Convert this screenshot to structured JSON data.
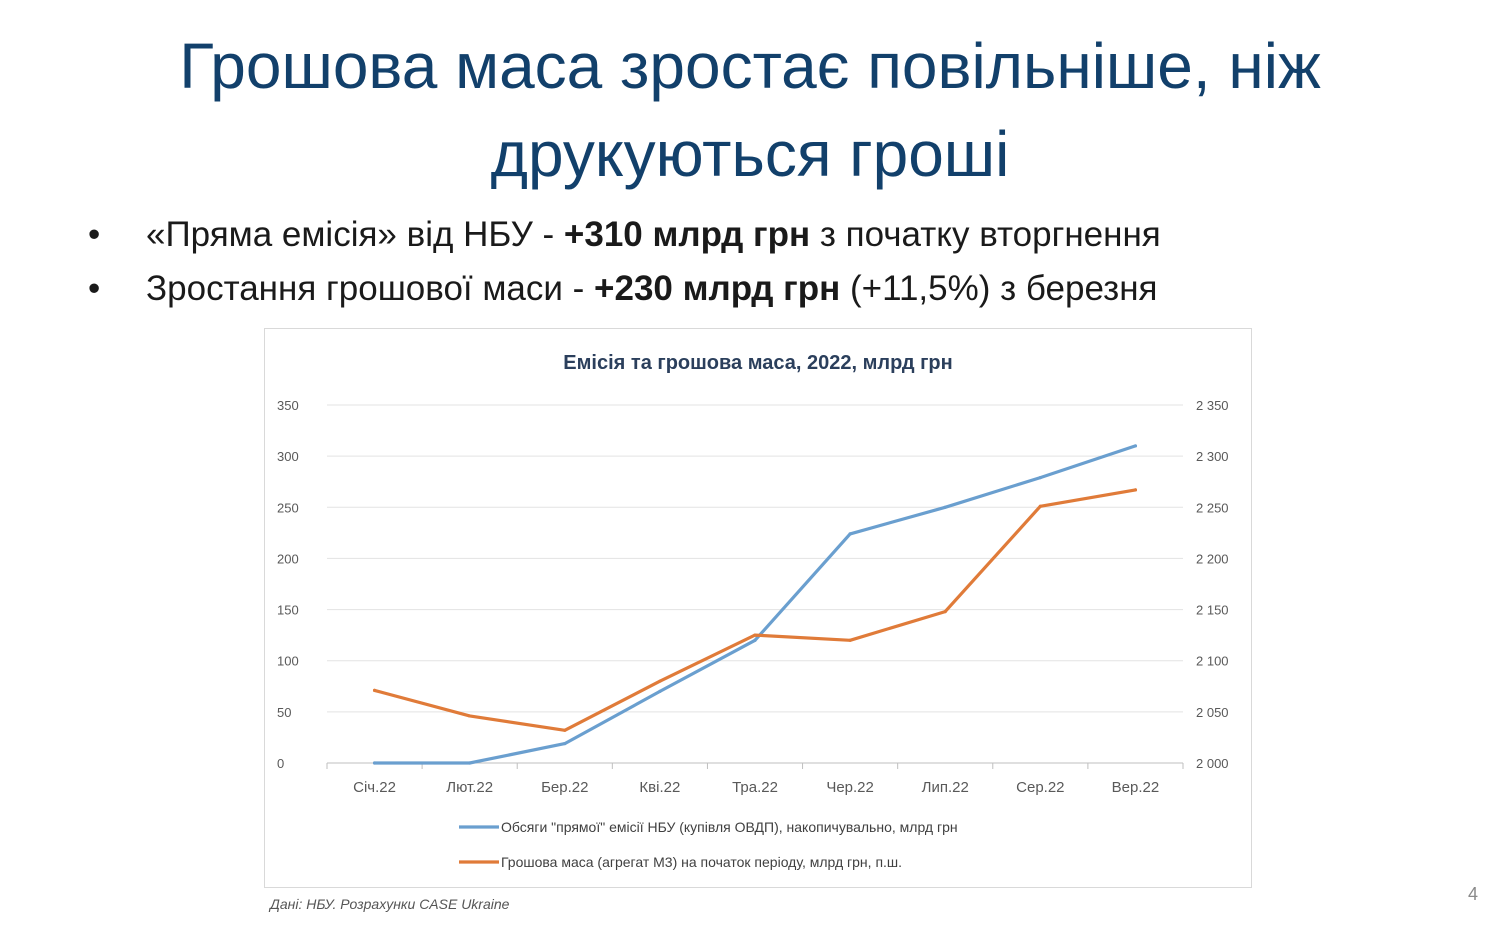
{
  "slide": {
    "title_line1": "Грошова маса зростає повільніше, ніж",
    "title_line2": "друкуються гроші",
    "bullets": [
      {
        "pre": "«Пряма емісія» від НБУ - ",
        "bold": "+310 млрд грн",
        "post": " з початку вторгнення"
      },
      {
        "pre": "Зростання грошової маси - ",
        "bold": "+230 млрд грн",
        "post": " (+11,5%) з березня"
      }
    ],
    "source": "Дані: НБУ. Розрахунки CASE Ukraine",
    "page_number": "4"
  },
  "chart_data": {
    "type": "line",
    "title": "Емісія та грошова маса, 2022, млрд грн",
    "categories": [
      "Січ.22",
      "Лют.22",
      "Бер.22",
      "Кві.22",
      "Тра.22",
      "Чер.22",
      "Лип.22",
      "Сер.22",
      "Вер.22"
    ],
    "y_left": {
      "min": 0,
      "max": 350,
      "step": 50,
      "ticks": [
        "0",
        "50",
        "100",
        "150",
        "200",
        "250",
        "300",
        "350"
      ]
    },
    "y_right": {
      "min": 2000,
      "max": 2350,
      "step": 50,
      "ticks": [
        "2 000",
        "2 050",
        "2 100",
        "2 150",
        "2 200",
        "2 250",
        "2 300",
        "2 350"
      ]
    },
    "grid": true,
    "legend_position": "bottom",
    "series": [
      {
        "name": "Обсяги \"прямої\" емісії НБУ (купівля ОВДП), накопичувально, млрд грн",
        "axis": "left",
        "color": "#6a9fcf",
        "values": [
          0,
          0,
          19,
          70,
          120,
          224,
          250,
          279,
          310
        ]
      },
      {
        "name": "Грошова маса (агрегат М3) на початок періоду, млрд грн, п.ш.",
        "axis": "right",
        "color": "#e07b39",
        "values": [
          2071,
          2046,
          2032,
          2080,
          2125,
          2120,
          2148,
          2251,
          2267
        ]
      }
    ]
  }
}
